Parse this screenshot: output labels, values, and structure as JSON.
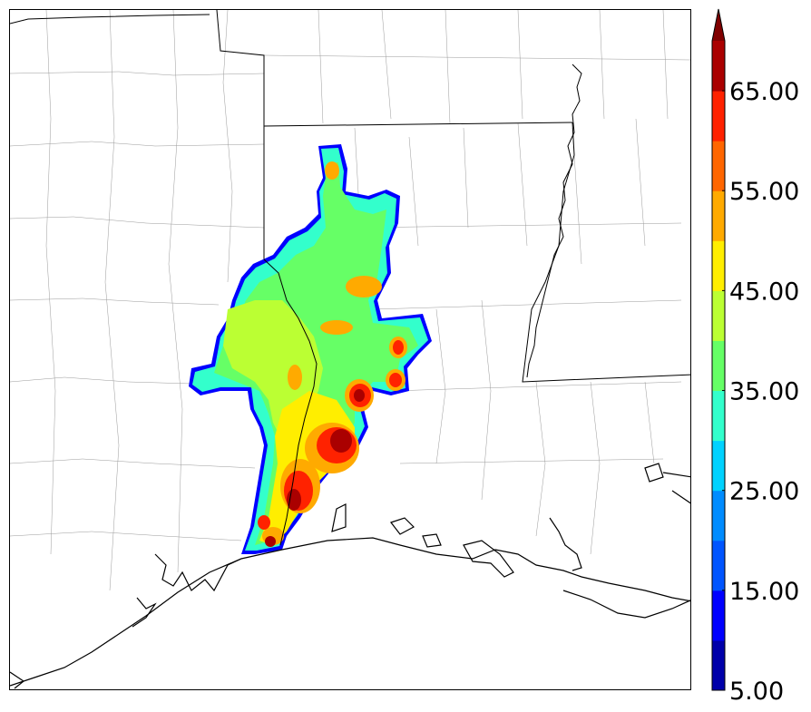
{
  "colorbar": {
    "levels": [
      5,
      10,
      15,
      20,
      25,
      30,
      35,
      40,
      45,
      50,
      55,
      60,
      65,
      70
    ],
    "colors": [
      "#0000aa",
      "#0000ff",
      "#0055ff",
      "#008cff",
      "#00d2ff",
      "#33ffcc",
      "#66ff66",
      "#bbff33",
      "#ffee00",
      "#ffaa00",
      "#ff6600",
      "#ff2200",
      "#aa0000"
    ],
    "extend_color": "#800000",
    "tick_labels": [
      "5.00",
      "15.00",
      "25.00",
      "35.00",
      "45.00",
      "55.00",
      "65.00"
    ],
    "extend": "max"
  },
  "map": {
    "field_colors": {
      "edge": "#0000ff",
      "low": "#33ffcc",
      "mid": "#66ff66",
      "mid2": "#bbff33",
      "high": "#ffee00",
      "higher": "#ffaa00",
      "hot": "#ff6600",
      "hotter": "#ff2200",
      "max": "#aa0000"
    },
    "coastline_color": "#000000",
    "county_color": "#888888"
  }
}
